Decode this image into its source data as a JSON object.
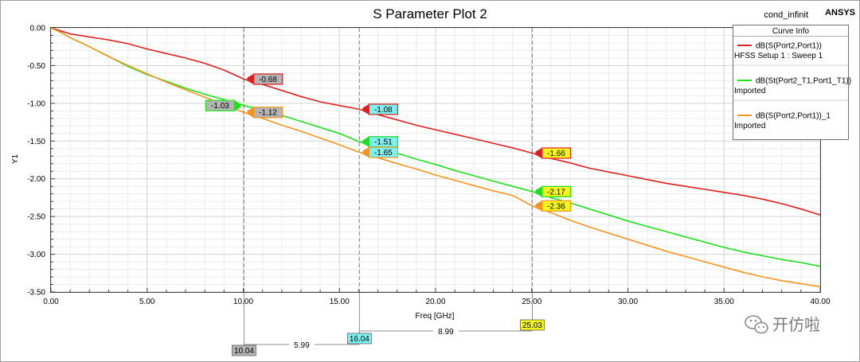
{
  "chart_data": {
    "type": "line",
    "title": "S Parameter Plot 2",
    "corner_label": "cond_infinit",
    "brand": "ANSYS",
    "xlabel": "Freq [GHz]",
    "ylabel": "Y1",
    "xlim": [
      0,
      40
    ],
    "ylim": [
      -3.5,
      0
    ],
    "xticks": [
      "0.00",
      "5.00",
      "10.00",
      "15.00",
      "20.00",
      "25.00",
      "30.00",
      "35.00",
      "40.00"
    ],
    "yticks": [
      "0.00",
      "-0.50",
      "-1.00",
      "-1.50",
      "-2.00",
      "-2.50",
      "-3.00",
      "-3.50"
    ],
    "grid": true,
    "legend_title": "Curve Info",
    "legend_position": "top-right",
    "series": [
      {
        "name": "dB(S(Port2,Port1))",
        "source": "HFSS Setup 1 : Sweep 1",
        "color": "#e02020",
        "x": [
          0,
          0.5,
          1,
          2,
          3,
          4,
          5,
          6,
          7,
          8,
          9,
          10.04,
          11,
          12,
          13,
          14,
          15,
          16.04,
          17,
          18,
          19,
          20,
          21,
          22,
          23,
          24,
          25.03,
          26,
          27,
          28,
          29,
          30,
          31,
          32,
          33,
          34,
          35,
          36,
          37,
          38,
          39,
          40
        ],
        "y": [
          0,
          -0.04,
          -0.08,
          -0.12,
          -0.16,
          -0.21,
          -0.28,
          -0.34,
          -0.4,
          -0.47,
          -0.56,
          -0.68,
          -0.75,
          -0.83,
          -0.91,
          -0.98,
          -1.03,
          -1.08,
          -1.15,
          -1.22,
          -1.29,
          -1.35,
          -1.41,
          -1.47,
          -1.53,
          -1.59,
          -1.66,
          -1.73,
          -1.79,
          -1.86,
          -1.91,
          -1.96,
          -2.01,
          -2.06,
          -2.1,
          -2.14,
          -2.18,
          -2.22,
          -2.27,
          -2.33,
          -2.4,
          -2.48
        ]
      },
      {
        "name": "dB(St(Port2_T1,Port1_T1))",
        "source": "Imported",
        "color": "#1ee01e",
        "x": [
          0,
          0.5,
          1,
          2,
          3,
          4,
          5,
          6,
          7,
          8,
          9,
          10.04,
          11,
          12,
          13,
          14,
          15,
          16.04,
          17,
          18,
          19,
          20,
          21,
          22,
          23,
          24,
          25.03,
          26,
          27,
          28,
          29,
          30,
          31,
          32,
          33,
          34,
          35,
          36,
          37,
          38,
          39,
          40
        ],
        "y": [
          0,
          -0.06,
          -0.13,
          -0.25,
          -0.38,
          -0.51,
          -0.62,
          -0.71,
          -0.8,
          -0.88,
          -0.95,
          -1.03,
          -1.09,
          -1.16,
          -1.24,
          -1.32,
          -1.4,
          -1.51,
          -1.58,
          -1.66,
          -1.74,
          -1.81,
          -1.89,
          -1.96,
          -2.03,
          -2.1,
          -2.17,
          -2.25,
          -2.32,
          -2.4,
          -2.48,
          -2.56,
          -2.63,
          -2.7,
          -2.77,
          -2.84,
          -2.91,
          -2.97,
          -3.02,
          -3.07,
          -3.11,
          -3.16
        ]
      },
      {
        "name": "dB(S(Port2,Port1))_1",
        "source": "Imported",
        "color": "#f7941d",
        "x": [
          0,
          0.5,
          1,
          2,
          3,
          4,
          5,
          6,
          7,
          8,
          9,
          10.04,
          11,
          12,
          13,
          14,
          15,
          16.04,
          17,
          18,
          19,
          20,
          21,
          22,
          23,
          24,
          25.03,
          26,
          27,
          28,
          29,
          30,
          31,
          32,
          33,
          34,
          35,
          36,
          37,
          38,
          39,
          40
        ],
        "y": [
          0,
          -0.06,
          -0.13,
          -0.25,
          -0.38,
          -0.5,
          -0.61,
          -0.72,
          -0.82,
          -0.92,
          -1.02,
          -1.12,
          -1.2,
          -1.29,
          -1.37,
          -1.46,
          -1.55,
          -1.65,
          -1.72,
          -1.8,
          -1.87,
          -1.95,
          -2.02,
          -2.09,
          -2.16,
          -2.22,
          -2.36,
          -2.45,
          -2.55,
          -2.64,
          -2.72,
          -2.8,
          -2.88,
          -2.96,
          -3.03,
          -3.1,
          -3.17,
          -3.24,
          -3.3,
          -3.35,
          -3.39,
          -3.43
        ]
      }
    ],
    "markers": [
      {
        "series": 0,
        "x": 10.04,
        "label": "-0.68",
        "bg": "#b4b4b4",
        "side": "right"
      },
      {
        "series": 1,
        "x": 10.04,
        "label": "-1.03",
        "bg": "#b4b4b4",
        "side": "left"
      },
      {
        "series": 2,
        "x": 10.04,
        "label": "-1.12",
        "bg": "#b4b4b4",
        "side": "right"
      },
      {
        "series": 0,
        "x": 16.04,
        "label": "-1.08",
        "bg": "#7ef0f0",
        "side": "right"
      },
      {
        "series": 1,
        "x": 16.04,
        "label": "-1.51",
        "bg": "#7ef0f0",
        "side": "right"
      },
      {
        "series": 2,
        "x": 16.04,
        "label": "-1.65",
        "bg": "#7ef0f0",
        "side": "right"
      },
      {
        "series": 0,
        "x": 25.03,
        "label": "-1.66",
        "bg": "#f5f51e",
        "side": "right"
      },
      {
        "series": 1,
        "x": 25.03,
        "label": "-2.17",
        "bg": "#f5f51e",
        "side": "right"
      },
      {
        "series": 2,
        "x": 25.03,
        "label": "-2.36",
        "bg": "#f5f51e",
        "side": "right"
      }
    ],
    "vertical_markers": [
      {
        "x": 10.04,
        "label": "10.04",
        "bg": "#b4b4b4"
      },
      {
        "x": 16.04,
        "label": "16.04",
        "bg": "#7ef0f0"
      },
      {
        "x": 25.03,
        "label": "25.03",
        "bg": "#f5f51e"
      }
    ],
    "deltas": [
      {
        "from": 10.04,
        "to": 16.04,
        "label": "5.99"
      },
      {
        "from": 16.04,
        "to": 25.03,
        "label": "8.99"
      }
    ]
  },
  "watermark": {
    "text": "开仿啦",
    "icon": "wechat-icon"
  }
}
